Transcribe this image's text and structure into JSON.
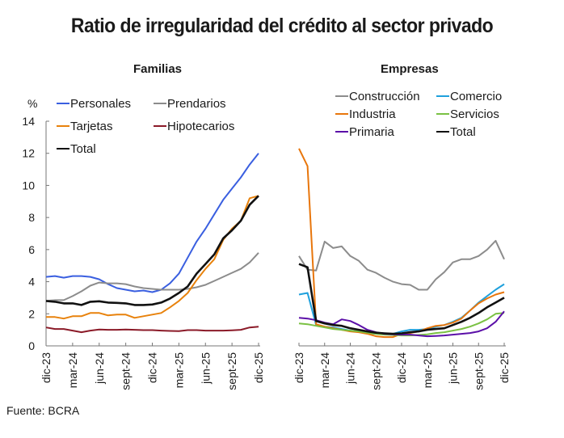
{
  "title": "Ratio de irregularidad del crédito al sector privado",
  "source": "Fuente: BCRA",
  "chart_data": [
    {
      "type": "line",
      "title": "Familias",
      "ylabel": "%",
      "xlabel": "",
      "ylim": [
        0,
        14
      ],
      "yticks": [
        0,
        2,
        4,
        6,
        8,
        10,
        12,
        14
      ],
      "x": [
        "dic-23",
        "ene-24",
        "feb-24",
        "mar-24",
        "abr-24",
        "may-24",
        "jun-24",
        "jul-24",
        "ago-24",
        "sept-24",
        "oct-24",
        "nov-24",
        "dic-24",
        "ene-25",
        "feb-25",
        "mar-25",
        "abr-25",
        "may-25",
        "jun-25",
        "jul-25",
        "ago-25",
        "sept-25",
        "oct-25",
        "nov-25",
        "dic-25"
      ],
      "xtick_labels": [
        "dic-23",
        "mar-24",
        "jun-24",
        "sept-24",
        "dic-24",
        "mar-25",
        "jun-25",
        "sept-25",
        "dic-25"
      ],
      "legend": "top-left",
      "series": [
        {
          "name": "Personales",
          "color": "#3a5fe0",
          "values": [
            4.3,
            4.35,
            4.25,
            4.35,
            4.35,
            4.3,
            4.15,
            3.85,
            3.6,
            3.5,
            3.4,
            3.45,
            3.35,
            3.5,
            3.9,
            4.5,
            5.5,
            6.5,
            7.3,
            8.2,
            9.1,
            9.8,
            10.5,
            11.3,
            12.0
          ]
        },
        {
          "name": "Prendarios",
          "color": "#8c8c8c",
          "values": [
            2.8,
            2.85,
            2.85,
            3.1,
            3.4,
            3.75,
            3.95,
            3.9,
            3.9,
            3.85,
            3.7,
            3.6,
            3.55,
            3.5,
            3.5,
            3.5,
            3.55,
            3.65,
            3.8,
            4.05,
            4.3,
            4.55,
            4.8,
            5.2,
            5.8
          ]
        },
        {
          "name": "Tarjetas",
          "color": "#e8820c",
          "values": [
            1.8,
            1.8,
            1.7,
            1.85,
            1.85,
            2.05,
            2.05,
            1.9,
            1.95,
            1.95,
            1.75,
            1.85,
            1.95,
            2.05,
            2.4,
            2.8,
            3.3,
            4.1,
            4.8,
            5.4,
            6.6,
            7.3,
            7.8,
            9.2,
            9.35
          ]
        },
        {
          "name": "Hipotecarios",
          "color": "#8b1a28",
          "values": [
            1.15,
            1.05,
            1.05,
            0.95,
            0.85,
            0.95,
            1.02,
            1.0,
            1.0,
            1.02,
            1.0,
            0.98,
            0.98,
            0.95,
            0.93,
            0.92,
            0.98,
            0.98,
            0.95,
            0.95,
            0.95,
            0.97,
            1.0,
            1.15,
            1.2
          ]
        },
        {
          "name": "Total",
          "color": "#111111",
          "values": [
            2.8,
            2.75,
            2.65,
            2.65,
            2.55,
            2.75,
            2.78,
            2.7,
            2.68,
            2.65,
            2.55,
            2.55,
            2.58,
            2.7,
            2.95,
            3.3,
            3.7,
            4.5,
            5.1,
            5.7,
            6.7,
            7.2,
            7.8,
            8.8,
            9.35
          ]
        }
      ]
    },
    {
      "type": "line",
      "title": "Empresas",
      "ylabel": "",
      "xlabel": "",
      "ylim": [
        0,
        14
      ],
      "x": [
        "dic-23",
        "ene-24",
        "feb-24",
        "mar-24",
        "abr-24",
        "may-24",
        "jun-24",
        "jul-24",
        "ago-24",
        "sept-24",
        "oct-24",
        "nov-24",
        "dic-24",
        "ene-25",
        "feb-25",
        "mar-25",
        "abr-25",
        "may-25",
        "jun-25",
        "jul-25",
        "ago-25",
        "sept-25",
        "oct-25",
        "nov-25",
        "dic-25"
      ],
      "xtick_labels": [
        "dic-23",
        "mar-24",
        "jun-24",
        "sept-24",
        "dic-24",
        "mar-25",
        "jun-25",
        "sept-25",
        "dic-25"
      ],
      "legend": "top",
      "series": [
        {
          "name": "Construcción",
          "color": "#8c8c8c",
          "values": [
            5.6,
            4.75,
            4.7,
            6.5,
            6.1,
            6.2,
            5.6,
            5.3,
            4.75,
            4.55,
            4.25,
            4.0,
            3.85,
            3.8,
            3.5,
            3.5,
            4.15,
            4.6,
            5.2,
            5.4,
            5.4,
            5.6,
            6.0,
            6.55,
            5.4
          ]
        },
        {
          "name": "Comercio",
          "color": "#1fa0dc",
          "values": [
            3.2,
            3.3,
            1.3,
            1.2,
            1.15,
            1.05,
            0.95,
            0.9,
            0.8,
            0.75,
            0.72,
            0.75,
            0.9,
            1.0,
            1.0,
            1.05,
            1.2,
            1.3,
            1.5,
            1.75,
            2.2,
            2.7,
            3.1,
            3.5,
            3.85
          ]
        },
        {
          "name": "Industria",
          "color": "#e8760c",
          "values": [
            12.3,
            11.2,
            1.35,
            1.2,
            1.1,
            1.0,
            0.9,
            0.85,
            0.75,
            0.6,
            0.55,
            0.55,
            0.75,
            0.8,
            0.9,
            1.1,
            1.25,
            1.3,
            1.45,
            1.7,
            2.2,
            2.65,
            2.95,
            3.2,
            3.35
          ]
        },
        {
          "name": "Servicios",
          "color": "#7ac143",
          "values": [
            1.4,
            1.35,
            1.25,
            1.15,
            1.05,
            1.0,
            0.95,
            0.9,
            0.82,
            0.75,
            0.7,
            0.68,
            0.65,
            0.65,
            0.68,
            0.72,
            0.8,
            0.85,
            0.95,
            1.05,
            1.2,
            1.4,
            1.65,
            2.0,
            2.05
          ]
        },
        {
          "name": "Primaria",
          "color": "#5b0fa8",
          "values": [
            1.75,
            1.7,
            1.6,
            1.45,
            1.35,
            1.65,
            1.55,
            1.3,
            1.0,
            0.85,
            0.75,
            0.72,
            0.7,
            0.7,
            0.65,
            0.6,
            0.62,
            0.65,
            0.7,
            0.75,
            0.8,
            0.9,
            1.1,
            1.5,
            2.15
          ]
        },
        {
          "name": "Total",
          "color": "#111111",
          "values": [
            5.1,
            4.9,
            1.55,
            1.4,
            1.3,
            1.25,
            1.1,
            1.0,
            0.9,
            0.82,
            0.78,
            0.75,
            0.78,
            0.85,
            0.9,
            1.0,
            1.05,
            1.1,
            1.3,
            1.5,
            1.75,
            2.05,
            2.4,
            2.7,
            3.0
          ]
        }
      ]
    }
  ]
}
